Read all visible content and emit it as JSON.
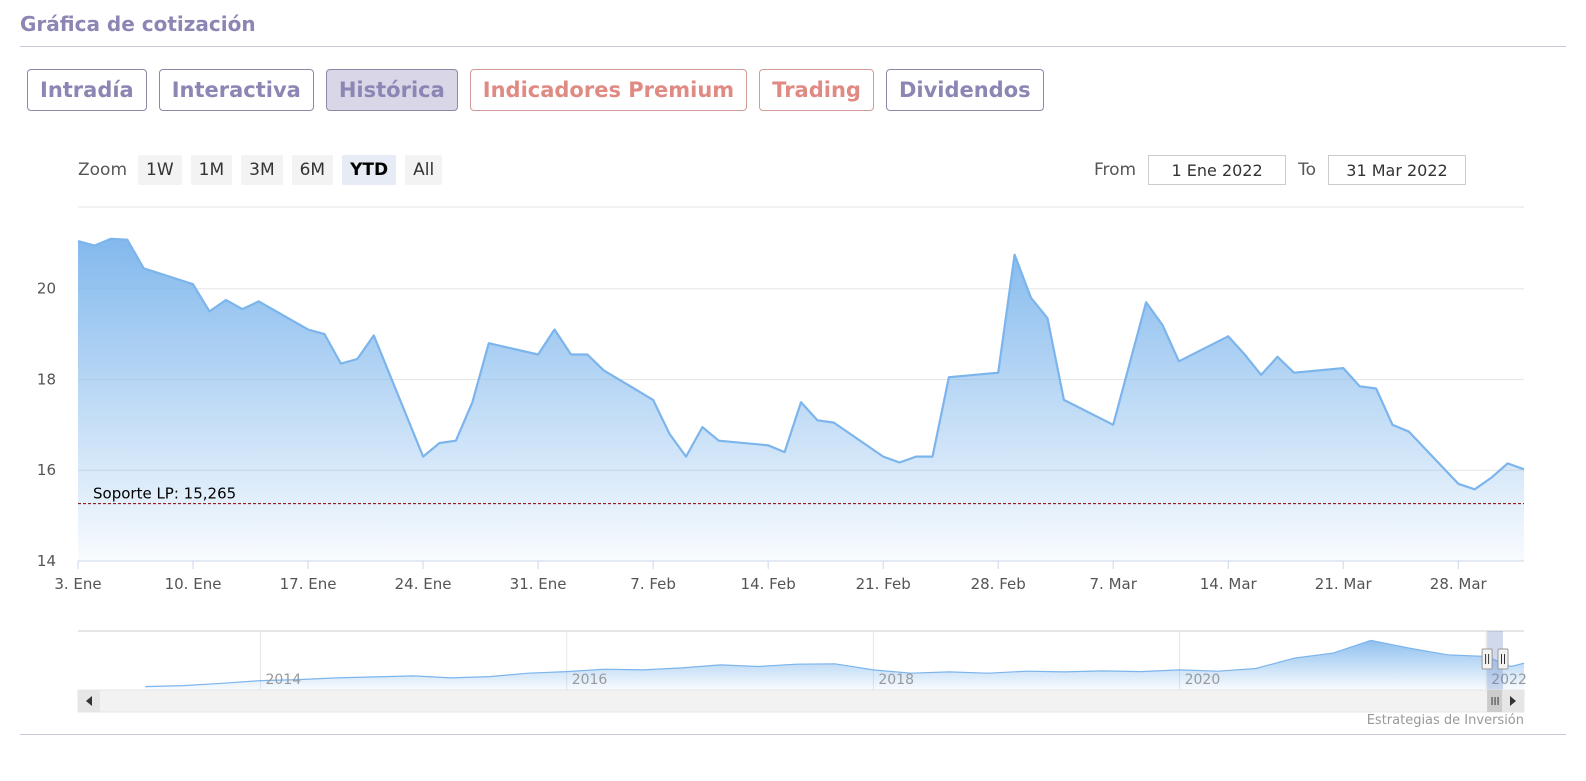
{
  "page": {
    "title": "Gráfica de cotización"
  },
  "tabs": [
    {
      "label": "Intradía",
      "active": false,
      "premium": false
    },
    {
      "label": "Interactiva",
      "active": false,
      "premium": false
    },
    {
      "label": "Histórica",
      "active": true,
      "premium": false
    },
    {
      "label": "Indicadores Premium",
      "active": false,
      "premium": true
    },
    {
      "label": "Trading",
      "active": false,
      "premium": true
    },
    {
      "label": "Dividendos",
      "active": false,
      "premium": false
    }
  ],
  "zoom": {
    "label": "Zoom",
    "buttons": [
      "1W",
      "1M",
      "3M",
      "6M",
      "YTD",
      "All"
    ],
    "selected": "YTD"
  },
  "range": {
    "from_label": "From",
    "from_value": "1 Ene 2022",
    "to_label": "To",
    "to_value": "31 Mar 2022"
  },
  "credit": "Estrategias de Inversión",
  "colors": {
    "accent": "#8b86b3",
    "premium": "#e08a84",
    "series": "#7cb5ec",
    "support": "#8b0000"
  },
  "chart_data": {
    "type": "area",
    "x_start": "2022-01-03",
    "x_end": "2022-04-01",
    "ylim": [
      14,
      21.8
    ],
    "yticks": [
      14,
      16,
      18,
      20
    ],
    "xticks": [
      {
        "date": "2022-01-03",
        "label": "3. Ene"
      },
      {
        "date": "2022-01-10",
        "label": "10. Ene"
      },
      {
        "date": "2022-01-17",
        "label": "17. Ene"
      },
      {
        "date": "2022-01-24",
        "label": "24. Ene"
      },
      {
        "date": "2022-01-31",
        "label": "31. Ene"
      },
      {
        "date": "2022-02-07",
        "label": "7. Feb"
      },
      {
        "date": "2022-02-14",
        "label": "14. Feb"
      },
      {
        "date": "2022-02-21",
        "label": "21. Feb"
      },
      {
        "date": "2022-02-28",
        "label": "28. Feb"
      },
      {
        "date": "2022-03-07",
        "label": "7. Mar"
      },
      {
        "date": "2022-03-14",
        "label": "14. Mar"
      },
      {
        "date": "2022-03-21",
        "label": "21. Mar"
      },
      {
        "date": "2022-03-28",
        "label": "28. Mar"
      }
    ],
    "series": [
      {
        "points": [
          [
            "2022-01-03",
            21.05
          ],
          [
            "2022-01-04",
            20.95
          ],
          [
            "2022-01-05",
            21.1
          ],
          [
            "2022-01-06",
            21.08
          ],
          [
            "2022-01-07",
            20.45
          ],
          [
            "2022-01-10",
            20.1
          ],
          [
            "2022-01-11",
            19.5
          ],
          [
            "2022-01-12",
            19.75
          ],
          [
            "2022-01-13",
            19.55
          ],
          [
            "2022-01-14",
            19.72
          ],
          [
            "2022-01-17",
            19.1
          ],
          [
            "2022-01-18",
            19.0
          ],
          [
            "2022-01-19",
            18.35
          ],
          [
            "2022-01-20",
            18.45
          ],
          [
            "2022-01-21",
            18.97
          ],
          [
            "2022-01-24",
            16.3
          ],
          [
            "2022-01-25",
            16.6
          ],
          [
            "2022-01-26",
            16.65
          ],
          [
            "2022-01-27",
            17.5
          ],
          [
            "2022-01-28",
            18.8
          ],
          [
            "2022-01-31",
            18.55
          ],
          [
            "2022-02-01",
            19.1
          ],
          [
            "2022-02-02",
            18.55
          ],
          [
            "2022-02-03",
            18.55
          ],
          [
            "2022-02-04",
            18.2
          ],
          [
            "2022-02-07",
            17.55
          ],
          [
            "2022-02-08",
            16.8
          ],
          [
            "2022-02-09",
            16.3
          ],
          [
            "2022-02-10",
            16.95
          ],
          [
            "2022-02-11",
            16.65
          ],
          [
            "2022-02-14",
            16.55
          ],
          [
            "2022-02-15",
            16.4
          ],
          [
            "2022-02-16",
            17.5
          ],
          [
            "2022-02-17",
            17.1
          ],
          [
            "2022-02-18",
            17.05
          ],
          [
            "2022-02-21",
            16.3
          ],
          [
            "2022-02-22",
            16.17
          ],
          [
            "2022-02-23",
            16.3
          ],
          [
            "2022-02-24",
            16.3
          ],
          [
            "2022-02-25",
            18.05
          ],
          [
            "2022-02-28",
            18.15
          ],
          [
            "2022-03-01",
            20.75
          ],
          [
            "2022-03-02",
            19.8
          ],
          [
            "2022-03-03",
            19.35
          ],
          [
            "2022-03-04",
            17.55
          ],
          [
            "2022-03-07",
            17.0
          ],
          [
            "2022-03-08",
            18.35
          ],
          [
            "2022-03-09",
            19.7
          ],
          [
            "2022-03-10",
            19.2
          ],
          [
            "2022-03-11",
            18.4
          ],
          [
            "2022-03-14",
            18.95
          ],
          [
            "2022-03-15",
            18.55
          ],
          [
            "2022-03-16",
            18.1
          ],
          [
            "2022-03-17",
            18.5
          ],
          [
            "2022-03-18",
            18.15
          ],
          [
            "2022-03-21",
            18.25
          ],
          [
            "2022-03-22",
            17.85
          ],
          [
            "2022-03-23",
            17.8
          ],
          [
            "2022-03-24",
            17.0
          ],
          [
            "2022-03-25",
            16.85
          ],
          [
            "2022-03-28",
            15.7
          ],
          [
            "2022-03-29",
            15.58
          ],
          [
            "2022-03-30",
            15.83
          ],
          [
            "2022-03-31",
            16.15
          ],
          [
            "2022-04-01",
            16.02
          ]
        ]
      }
    ],
    "support_line": {
      "label": "Soporte LP: 15,265",
      "value": 15.265
    },
    "navigator": {
      "year_labels": [
        "2014",
        "2016",
        "2018",
        "2020",
        "2022"
      ],
      "ylim": [
        5,
        22
      ],
      "series": [
        [
          "2013-04-01",
          6.0
        ],
        [
          "2013-07-01",
          6.3
        ],
        [
          "2013-10-01",
          7.0
        ],
        [
          "2014-01-01",
          7.8
        ],
        [
          "2014-04-01",
          8.1
        ],
        [
          "2014-07-01",
          8.6
        ],
        [
          "2014-10-01",
          8.9
        ],
        [
          "2015-01-01",
          9.2
        ],
        [
          "2015-04-01",
          8.6
        ],
        [
          "2015-07-01",
          9.0
        ],
        [
          "2015-10-01",
          10.0
        ],
        [
          "2016-01-01",
          10.5
        ],
        [
          "2016-04-01",
          11.2
        ],
        [
          "2016-07-01",
          11.0
        ],
        [
          "2016-10-01",
          11.6
        ],
        [
          "2017-01-01",
          12.5
        ],
        [
          "2017-04-01",
          12.0
        ],
        [
          "2017-07-01",
          12.7
        ],
        [
          "2017-10-01",
          12.8
        ],
        [
          "2018-01-01",
          11.0
        ],
        [
          "2018-04-01",
          10.0
        ],
        [
          "2018-07-01",
          10.4
        ],
        [
          "2018-10-01",
          10.0
        ],
        [
          "2019-01-01",
          10.6
        ],
        [
          "2019-04-01",
          10.4
        ],
        [
          "2019-07-01",
          10.7
        ],
        [
          "2019-10-01",
          10.5
        ],
        [
          "2020-01-01",
          11.0
        ],
        [
          "2020-04-01",
          10.6
        ],
        [
          "2020-07-01",
          11.4
        ],
        [
          "2020-10-01",
          14.5
        ],
        [
          "2021-01-01",
          16.0
        ],
        [
          "2021-04-01",
          19.8
        ],
        [
          "2021-07-01",
          17.5
        ],
        [
          "2021-10-01",
          15.5
        ],
        [
          "2022-01-01",
          15.0
        ],
        [
          "2022-03-01",
          12.0
        ],
        [
          "2022-04-01",
          13.0
        ]
      ]
    }
  }
}
